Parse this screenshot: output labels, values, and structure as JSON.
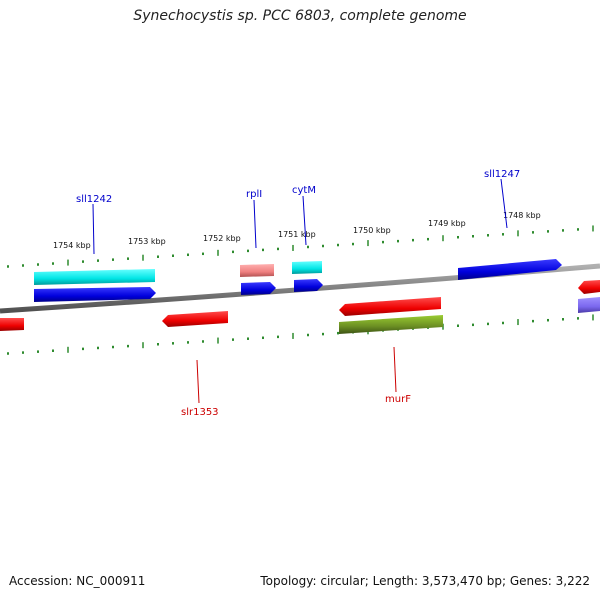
{
  "title": "Synechocystis sp. PCC 6803, complete genome",
  "footer": {
    "accession": "Accession: NC_000911",
    "summary": "Topology: circular; Length: 3,573,470 bp; Genes: 3,222"
  },
  "kbp_labels": [
    "1754 kbp",
    "1753 kbp",
    "1752 kbp",
    "1751 kbp",
    "1750 kbp",
    "1749 kbp",
    "1748 kbp"
  ],
  "gene_labels": {
    "sll1242": "sll1242",
    "rplI": "rplI",
    "cytM": "cytM",
    "sll1247": "sll1247",
    "slr1353": "slr1353",
    "murF": "murF"
  },
  "colors": {
    "forward_cds": "#0000dd",
    "reverse_cds": "#ee0000",
    "cyan": "#00e5e5",
    "pink": "#f08080",
    "olive": "#6b8e23",
    "purple": "#7b68ee",
    "tick": "#2e8b2e",
    "backbone": "#808080"
  }
}
